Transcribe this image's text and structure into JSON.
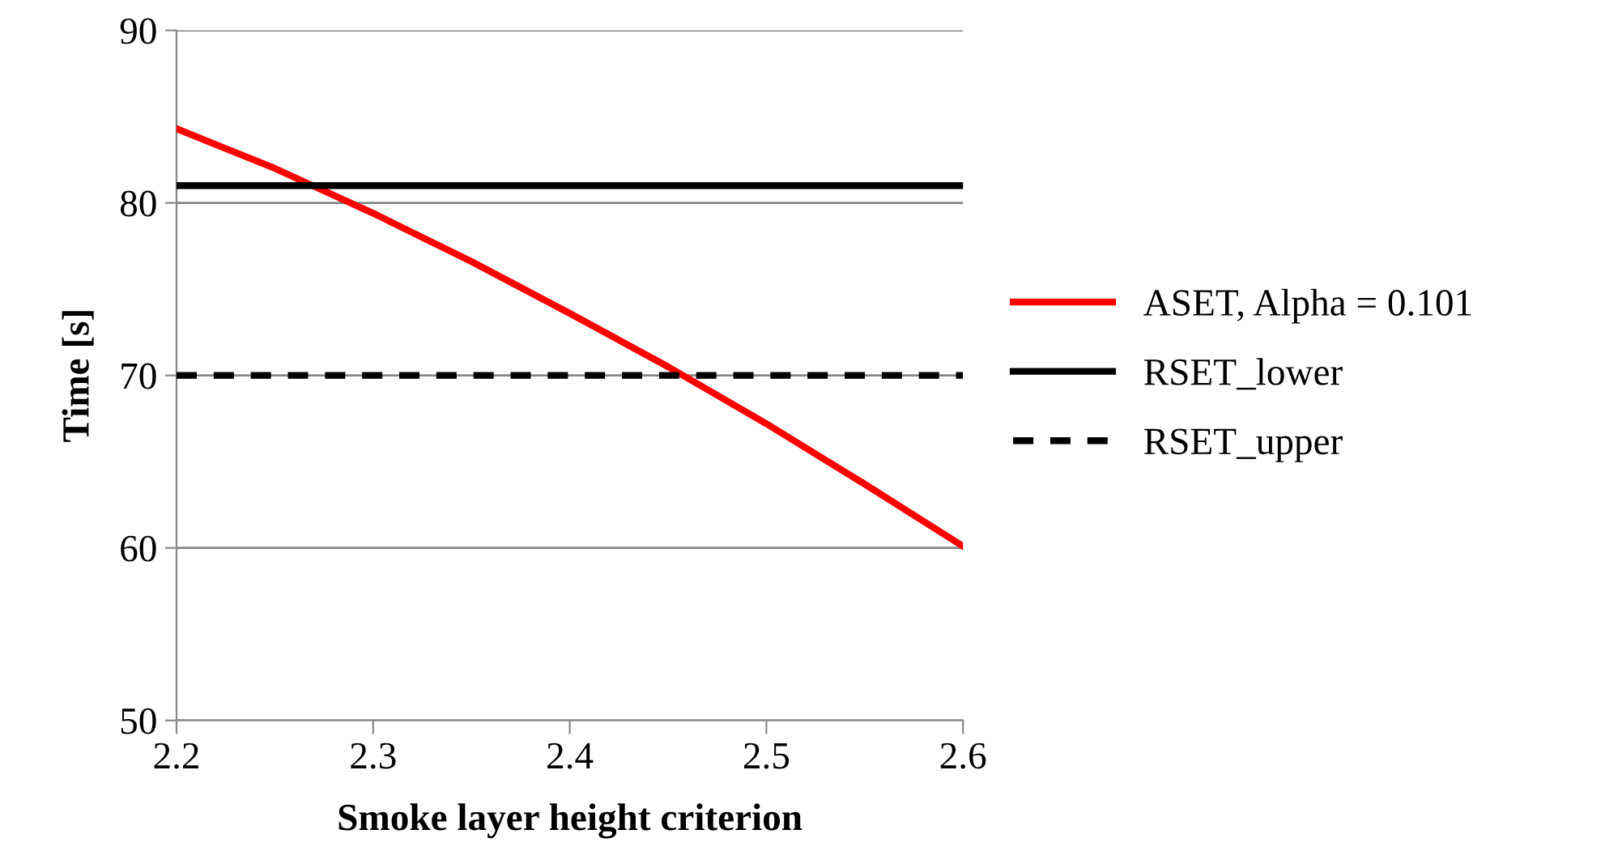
{
  "chart_data": {
    "type": "line",
    "xlabel": "Smoke layer height criterion",
    "ylabel": "Time [s]",
    "xlim": [
      2.2,
      2.6
    ],
    "xticks": [
      2.2,
      2.3,
      2.4,
      2.5,
      2.6
    ],
    "ylim": [
      50,
      90
    ],
    "yticks": [
      50,
      60,
      70,
      80,
      90
    ],
    "grid": "y",
    "legend": "right",
    "series": [
      {
        "name": "ASET, Alpha = 0.101",
        "color": "#ff0000",
        "line_style": "solid",
        "x": [
          2.2,
          2.25,
          2.3,
          2.35,
          2.4,
          2.45,
          2.5,
          2.55,
          2.6
        ],
        "values": [
          84.3,
          82.0,
          79.4,
          76.6,
          73.6,
          70.5,
          67.2,
          63.7,
          60.1
        ]
      },
      {
        "name": "RSET_lower",
        "color": "#000000",
        "line_style": "solid",
        "x": [
          2.2,
          2.6
        ],
        "values": [
          81,
          81
        ]
      },
      {
        "name": "RSET_upper",
        "color": "#000000",
        "line_style": "dashed",
        "x": [
          2.2,
          2.6
        ],
        "values": [
          70,
          70
        ]
      }
    ]
  }
}
